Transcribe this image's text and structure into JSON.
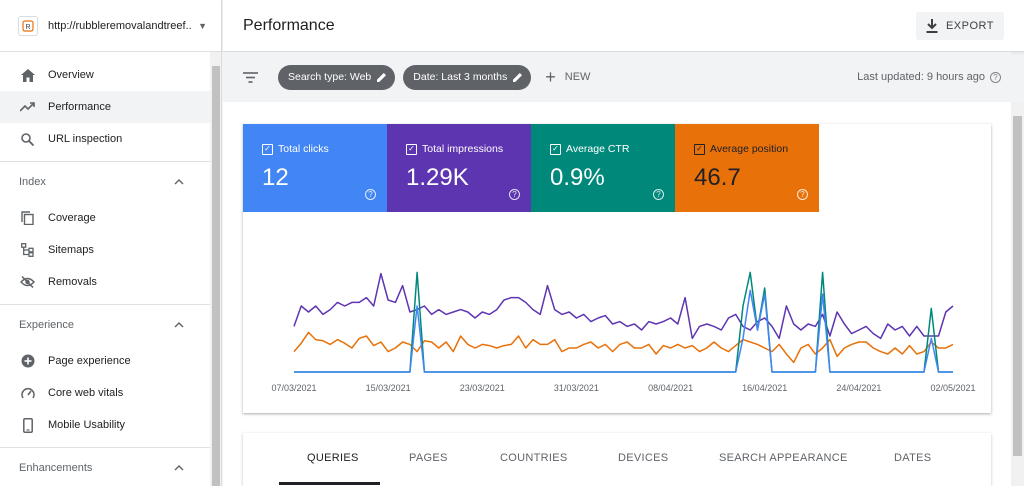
{
  "property": {
    "url": "http://rubbleremovalandtreef..."
  },
  "nav": {
    "overview": "Overview",
    "performance": "Performance",
    "url_inspection": "URL inspection",
    "index_header": "Index",
    "coverage": "Coverage",
    "sitemaps": "Sitemaps",
    "removals": "Removals",
    "experience_header": "Experience",
    "page_experience": "Page experience",
    "core_web_vitals": "Core web vitals",
    "mobile_usability": "Mobile Usability",
    "enhancements_header": "Enhancements"
  },
  "header": {
    "title": "Performance",
    "export_label": "EXPORT"
  },
  "filters": {
    "search_type": "Search type: Web",
    "date": "Date: Last 3 months",
    "new_label": "NEW",
    "last_updated": "Last updated: 9 hours ago"
  },
  "metrics": [
    {
      "label": "Total clicks",
      "value": "12",
      "color": "#4285f4"
    },
    {
      "label": "Total impressions",
      "value": "1.29K",
      "color": "#5e35b1"
    },
    {
      "label": "Average CTR",
      "value": "0.9%",
      "color": "#00897b"
    },
    {
      "label": "Average position",
      "value": "46.7",
      "color": "#e8710a"
    }
  ],
  "chart_data": {
    "type": "line",
    "x_ticks": [
      "07/03/2021",
      "15/03/2021",
      "23/03/2021",
      "31/03/2021",
      "08/04/2021",
      "16/04/2021",
      "24/04/2021",
      "02/05/2021"
    ],
    "series": [
      {
        "name": "Total impressions",
        "color": "#5e35b1",
        "values": [
          0.38,
          0.55,
          0.5,
          0.55,
          0.48,
          0.52,
          0.58,
          0.55,
          0.58,
          0.58,
          0.62,
          0.55,
          0.82,
          0.6,
          0.58,
          0.72,
          0.5,
          0.52,
          0.55,
          0.48,
          0.52,
          0.48,
          0.5,
          0.52,
          0.5,
          0.45,
          0.5,
          0.48,
          0.52,
          0.6,
          0.62,
          0.62,
          0.58,
          0.52,
          0.48,
          0.72,
          0.52,
          0.48,
          0.5,
          0.45,
          0.48,
          0.42,
          0.45,
          0.47,
          0.4,
          0.42,
          0.38,
          0.4,
          0.35,
          0.42,
          0.4,
          0.42,
          0.45,
          0.4,
          0.62,
          0.28,
          0.38,
          0.4,
          0.38,
          0.35,
          0.45,
          0.48,
          0.38,
          0.35,
          0.42,
          0.45,
          0.38,
          0.28,
          0.55,
          0.4,
          0.35,
          0.4,
          0.38,
          0.48,
          0.3,
          0.5,
          0.4,
          0.32,
          0.35,
          0.38,
          0.32,
          0.28,
          0.4,
          0.35,
          0.38,
          0.3,
          0.38,
          0.3,
          0.3,
          0.3,
          0.5,
          0.55
        ]
      },
      {
        "name": "Average position",
        "color": "#e8710a",
        "values": [
          0.17,
          0.24,
          0.33,
          0.27,
          0.26,
          0.23,
          0.27,
          0.24,
          0.2,
          0.28,
          0.3,
          0.22,
          0.25,
          0.17,
          0.2,
          0.25,
          0.23,
          0.17,
          0.26,
          0.25,
          0.2,
          0.25,
          0.17,
          0.3,
          0.23,
          0.2,
          0.23,
          0.22,
          0.2,
          0.22,
          0.23,
          0.3,
          0.2,
          0.27,
          0.23,
          0.23,
          0.27,
          0.17,
          0.2,
          0.2,
          0.23,
          0.25,
          0.2,
          0.23,
          0.17,
          0.23,
          0.25,
          0.2,
          0.2,
          0.23,
          0.15,
          0.22,
          0.2,
          0.23,
          0.2,
          0.22,
          0.17,
          0.2,
          0.25,
          0.2,
          0.17,
          0.22,
          0.27,
          0.25,
          0.23,
          0.2,
          0.17,
          0.23,
          0.15,
          0.08,
          0.2,
          0.23,
          0.15,
          0.2,
          0.27,
          0.13,
          0.2,
          0.23,
          0.25,
          0.25,
          0.2,
          0.17,
          0.15,
          0.2,
          0.15,
          0.22,
          0.15,
          0.17,
          0.25,
          0.2,
          0.2,
          0.23
        ]
      },
      {
        "name": "Average CTR",
        "color": "#00897b",
        "values": [
          0,
          0,
          0,
          0,
          0,
          0,
          0,
          0,
          0,
          0,
          0,
          0,
          0,
          0,
          0,
          0,
          0,
          0.83,
          0,
          0,
          0,
          0,
          0,
          0,
          0,
          0,
          0,
          0,
          0,
          0,
          0,
          0,
          0,
          0,
          0,
          0,
          0,
          0,
          0,
          0,
          0,
          0,
          0,
          0,
          0,
          0,
          0,
          0,
          0,
          0,
          0,
          0,
          0,
          0,
          0,
          0,
          0,
          0,
          0,
          0,
          0,
          0,
          0.55,
          0.83,
          0.35,
          0.7,
          0,
          0,
          0,
          0,
          0,
          0,
          0,
          0.83,
          0,
          0,
          0,
          0,
          0,
          0,
          0,
          0,
          0,
          0,
          0,
          0,
          0,
          0,
          0.53,
          0,
          0,
          0
        ]
      },
      {
        "name": "Total clicks",
        "color": "#4285f4",
        "values": [
          0,
          0,
          0,
          0,
          0,
          0,
          0,
          0,
          0,
          0,
          0,
          0,
          0,
          0,
          0,
          0,
          0,
          0.55,
          0,
          0,
          0,
          0,
          0,
          0,
          0,
          0,
          0,
          0,
          0,
          0,
          0,
          0,
          0,
          0,
          0,
          0,
          0,
          0,
          0,
          0,
          0,
          0,
          0,
          0,
          0,
          0,
          0,
          0,
          0,
          0,
          0,
          0,
          0,
          0,
          0,
          0,
          0,
          0,
          0,
          0,
          0,
          0,
          0.28,
          0.68,
          0.35,
          0.65,
          0,
          0,
          0,
          0,
          0,
          0,
          0,
          0.65,
          0,
          0,
          0,
          0,
          0,
          0,
          0,
          0,
          0,
          0,
          0,
          0,
          0,
          0,
          0.28,
          0,
          0,
          0
        ]
      }
    ]
  },
  "tabs": [
    "QUERIES",
    "PAGES",
    "COUNTRIES",
    "DEVICES",
    "SEARCH APPEARANCE",
    "DATES"
  ]
}
